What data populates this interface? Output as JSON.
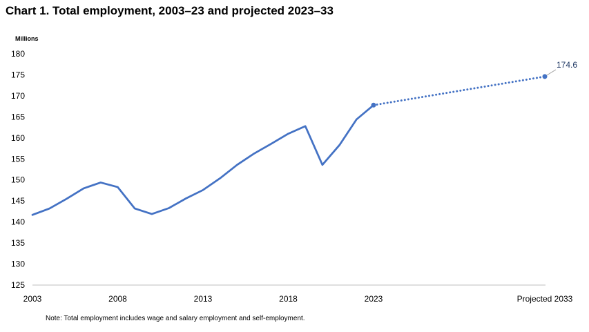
{
  "title": "Chart 1. Total employment, 2003–23 and projected 2023–33",
  "note": "Note: Total employment includes wage and salary employment and self-employment.",
  "colors": {
    "line": "#4472C4",
    "axis": "#bfbfbf",
    "label": "#1f3864"
  },
  "chart_data": {
    "type": "line",
    "ylabel": "Millions",
    "ylim": [
      125,
      180
    ],
    "yticks": [
      125,
      130,
      135,
      140,
      145,
      150,
      155,
      160,
      165,
      170,
      175,
      180
    ],
    "xtick_labels": [
      "2003",
      "2008",
      "2013",
      "2018",
      "2023",
      "Projected 2033"
    ],
    "grid": false,
    "series": [
      {
        "style": "solid",
        "x": [
          2003,
          2004,
          2005,
          2006,
          2007,
          2008,
          2009,
          2010,
          2011,
          2012,
          2013,
          2014,
          2015,
          2016,
          2017,
          2018,
          2019,
          2020,
          2021,
          2022,
          2023
        ],
        "values": [
          141.7,
          143.2,
          145.5,
          148.0,
          149.4,
          148.3,
          143.2,
          141.9,
          143.3,
          145.6,
          147.6,
          150.4,
          153.6,
          156.3,
          158.6,
          161.0,
          162.8,
          153.6,
          158.3,
          164.4,
          167.8
        ]
      },
      {
        "style": "dotted",
        "x": [
          2023,
          2033
        ],
        "values": [
          167.8,
          174.6
        ],
        "end_label": "174.6"
      }
    ]
  }
}
